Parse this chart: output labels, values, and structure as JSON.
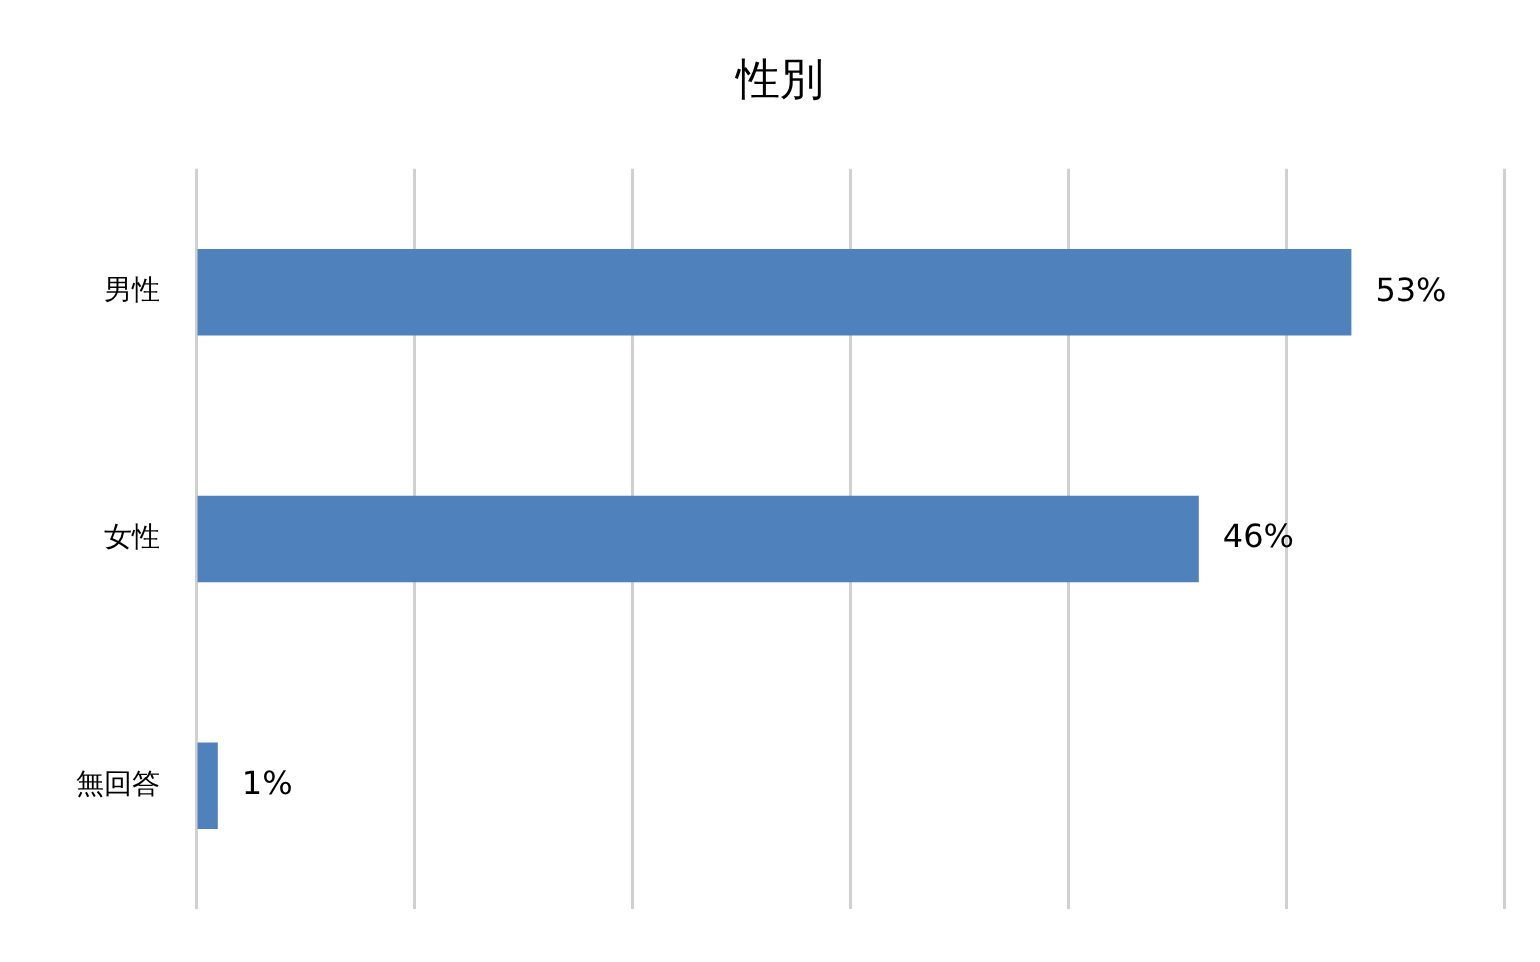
{
  "chart_data": {
    "type": "bar",
    "orientation": "horizontal",
    "title": "性別",
    "categories": [
      "男性",
      "女性",
      "無回答"
    ],
    "values": [
      53,
      46,
      1
    ],
    "value_labels": [
      "53%",
      "46%",
      "1%"
    ],
    "color": "#4f81bd",
    "xlim": [
      0,
      60
    ],
    "xticks": [
      {
        "value": 0,
        "label": null
      },
      {
        "value": 10,
        "label": null
      },
      {
        "value": 20,
        "label": null
      },
      {
        "value": 30,
        "label": null
      },
      {
        "value": 40,
        "label": null
      },
      {
        "value": 50,
        "label": null
      },
      {
        "value": 60,
        "label": null
      }
    ],
    "grid": "x",
    "tick_labels": "y",
    "legend": false
  }
}
